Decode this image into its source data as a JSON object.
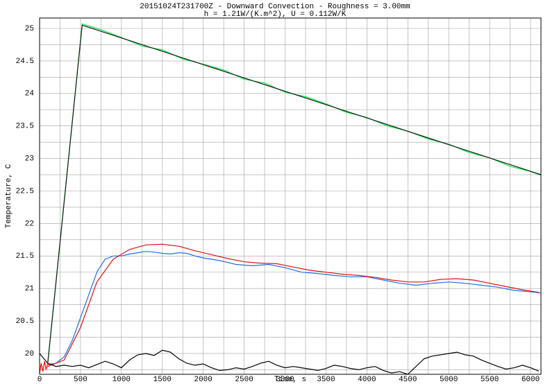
{
  "chart_data": {
    "type": "line",
    "title": "20151024T231700Z - Downward Convection - Roughness = 3.00mm",
    "subtitle": "h = 1.21W/(K.m^2), U = 0.112W/K",
    "xlabel": "Time, s",
    "ylabel": "Temperature, C",
    "xlim": [
      0,
      6127
    ],
    "ylim": [
      19.68,
      25.16
    ],
    "xticks": [
      0,
      500,
      1000,
      1500,
      2000,
      2500,
      3000,
      3500,
      4000,
      4500,
      5000,
      5500,
      6000
    ],
    "yticks": [
      20,
      20.5,
      21,
      21.5,
      22,
      22.5,
      23,
      23.5,
      24,
      24.5,
      25
    ],
    "xminor": [
      250,
      750,
      1250,
      1750,
      2250,
      2750,
      3250,
      3750,
      4250,
      4750,
      5250,
      5750
    ],
    "yminor": [
      19.75,
      20.25,
      20.75,
      21.25,
      21.75,
      22.25,
      22.75,
      23.25,
      23.75,
      24.25,
      24.75
    ],
    "grid": true,
    "series": [
      {
        "color": "#00ee44",
        "x": [
          100,
          520,
          750,
          1000,
          1250,
          1500,
          1750,
          2000,
          2250,
          2500,
          2750,
          3000,
          3250,
          3500,
          3750,
          4000,
          4250,
          4500,
          4750,
          5000,
          5250,
          5500,
          5750,
          6000,
          6127
        ],
        "values": [
          19.87,
          25.07,
          24.98,
          24.86,
          24.73,
          24.67,
          24.53,
          24.45,
          24.36,
          24.22,
          24.16,
          24.02,
          23.95,
          23.84,
          23.71,
          23.63,
          23.5,
          23.42,
          23.3,
          23.22,
          23.09,
          23.01,
          22.88,
          22.8,
          22.74
        ]
      },
      {
        "color": "#1a1a1a",
        "x": [
          100,
          520,
          6127
        ],
        "values": [
          19.85,
          25.05,
          22.75
        ]
      },
      {
        "color": "#1e6fe0",
        "x": [
          100,
          200,
          300,
          400,
          500,
          600,
          700,
          800,
          900,
          1000,
          1100,
          1200,
          1300,
          1400,
          1500,
          1600,
          1700,
          1800,
          1900,
          2000,
          2200,
          2400,
          2600,
          2800,
          3000,
          3200,
          3400,
          3600,
          3800,
          4000,
          4200,
          4400,
          4600,
          4800,
          5000,
          5200,
          5400,
          5600,
          5800,
          6000,
          6127
        ],
        "values": [
          19.83,
          19.85,
          19.95,
          20.2,
          20.55,
          20.9,
          21.25,
          21.45,
          21.5,
          21.5,
          21.53,
          21.55,
          21.57,
          21.56,
          21.54,
          21.53,
          21.55,
          21.54,
          21.5,
          21.47,
          21.43,
          21.37,
          21.35,
          21.37,
          21.32,
          21.25,
          21.23,
          21.2,
          21.18,
          21.18,
          21.13,
          21.08,
          21.05,
          21.08,
          21.1,
          21.08,
          21.05,
          21.02,
          20.97,
          20.95,
          20.93
        ]
      },
      {
        "color": "#e01010",
        "x": [
          100,
          300,
          500,
          700,
          900,
          1100,
          1300,
          1500,
          1700,
          1900,
          2100,
          2300,
          2500,
          2700,
          2900,
          3100,
          3300,
          3500,
          3700,
          3900,
          4100,
          4300,
          4500,
          4700,
          4900,
          5100,
          5300,
          5500,
          5700,
          5900,
          6100
        ],
        "values": [
          19.8,
          19.9,
          20.4,
          21.1,
          21.45,
          21.6,
          21.67,
          21.68,
          21.65,
          21.58,
          21.52,
          21.46,
          21.41,
          21.39,
          21.38,
          21.33,
          21.28,
          21.25,
          21.22,
          21.2,
          21.17,
          21.13,
          21.1,
          21.1,
          21.14,
          21.15,
          21.13,
          21.08,
          21.03,
          20.98,
          20.94
        ]
      },
      {
        "color": "#000000",
        "x": [
          0,
          100,
          200,
          300,
          400,
          500,
          600,
          700,
          800,
          900,
          1000,
          1100,
          1200,
          1300,
          1400,
          1500,
          1600,
          1700,
          1800,
          1900,
          2000,
          2100,
          2200,
          2300,
          2400,
          2500,
          2600,
          2700,
          2800,
          2900,
          3000,
          3100,
          3200,
          3300,
          3400,
          3500,
          3600,
          3700,
          3800,
          3900,
          4000,
          4100,
          4200,
          4300,
          4400,
          4500,
          4600,
          4700,
          4800,
          4900,
          5000,
          5100,
          5200,
          5300,
          5400,
          5500,
          5600,
          5700,
          5800,
          5900,
          6000,
          6100
        ],
        "values": [
          20.0,
          19.85,
          19.8,
          19.82,
          19.8,
          19.82,
          19.78,
          19.83,
          19.88,
          19.84,
          19.78,
          19.9,
          19.98,
          20.0,
          19.97,
          20.05,
          20.02,
          19.92,
          19.85,
          19.82,
          19.84,
          19.78,
          19.74,
          19.75,
          19.78,
          19.76,
          19.8,
          19.85,
          19.88,
          19.82,
          19.78,
          19.8,
          19.78,
          19.76,
          19.74,
          19.77,
          19.82,
          19.8,
          19.77,
          19.75,
          19.78,
          19.8,
          19.74,
          19.7,
          19.72,
          19.68,
          19.8,
          19.92,
          19.96,
          19.98,
          20.0,
          20.02,
          19.98,
          19.96,
          19.9,
          19.85,
          19.8,
          19.76,
          19.78,
          19.82,
          19.78,
          19.73
        ]
      },
      {
        "color": "#ff0000",
        "x": [
          0,
          20,
          40,
          60,
          80,
          100,
          120
        ],
        "values": [
          19.7,
          19.85,
          19.72,
          19.88,
          19.75,
          19.85,
          19.82
        ]
      }
    ]
  }
}
